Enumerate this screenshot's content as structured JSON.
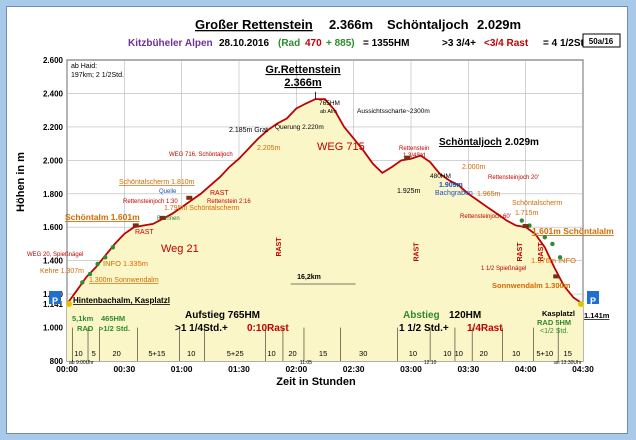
{
  "header": {
    "title_a": "Großer Rettenstein",
    "title_b": "2.366m",
    "title_c": "Schöntaljoch",
    "title_d": "2.029m",
    "region": "Kitzbüheler Alpen",
    "date": "28.10.2016",
    "rad_label": "(Rad",
    "rad_value": "470",
    "rad_plus": "+ 885)",
    "hm_total": "= 1355HM",
    "time_a": ">3 3/4+",
    "time_rast": "<3/4 Rast",
    "time_total": "= 4 1/2Std.",
    "sheet": "50a/16"
  },
  "notes": {
    "start_line1": "ab Haid:",
    "start_line2": "197km; 2 1/2Std."
  },
  "chart_data": {
    "type": "area",
    "xlabel": "Zeit in Stunden",
    "ylabel": "Höhen in m",
    "xlim": [
      0,
      270
    ],
    "ylim": [
      800,
      2600
    ],
    "y_ticks": [
      "2.600",
      "2.400",
      "2.200",
      "2.000",
      "1.800",
      "1.600",
      "1.400",
      "1.200",
      "1.141",
      "1.000",
      "800"
    ],
    "y_tick_values": [
      2600,
      2400,
      2200,
      2000,
      1800,
      1600,
      1400,
      1200,
      1141,
      1000,
      800
    ],
    "x_ticks": [
      "00:00",
      "00:30",
      "01:00",
      "01:30",
      "02:00",
      "02:30",
      "03:00",
      "03:30",
      "04:00",
      "04:30"
    ],
    "x_tick_values": [
      0,
      30,
      60,
      90,
      120,
      150,
      180,
      210,
      240,
      270
    ],
    "profile": {
      "x": [
        0,
        5,
        10,
        15,
        20,
        25,
        30,
        35,
        40,
        45,
        50,
        55,
        60,
        65,
        70,
        75,
        80,
        85,
        90,
        95,
        100,
        105,
        110,
        115,
        120,
        125,
        130,
        135,
        140,
        145,
        150,
        155,
        160,
        165,
        170,
        175,
        180,
        185,
        190,
        195,
        200,
        205,
        210,
        215,
        220,
        225,
        230,
        235,
        240,
        245,
        250,
        255,
        260,
        265,
        270
      ],
      "y": [
        1141,
        1220,
        1300,
        1360,
        1430,
        1500,
        1560,
        1600,
        1610,
        1620,
        1650,
        1680,
        1720,
        1760,
        1800,
        1850,
        1900,
        1960,
        2010,
        2070,
        2130,
        2180,
        2220,
        2250,
        2310,
        2340,
        2366,
        2366,
        2300,
        2200,
        2130,
        2060,
        1980,
        1925,
        1960,
        2000,
        2010,
        2029,
        1990,
        1920,
        1880,
        1850,
        1800,
        1760,
        1720,
        1680,
        1640,
        1610,
        1601,
        1560,
        1480,
        1360,
        1250,
        1180,
        1141
      ]
    },
    "summit_label": "Gr.Rettenstein",
    "summit_value": "2.366m",
    "saddle_label": "Schöntaljoch",
    "saddle_value": "2.029m",
    "segments": [
      {
        "label": "10",
        "x": 6
      },
      {
        "label": "5",
        "x": 14
      },
      {
        "label": "20",
        "x": 26
      },
      {
        "label": "5+15",
        "x": 47
      },
      {
        "label": "10",
        "x": 65
      },
      {
        "label": "5+25",
        "x": 88
      },
      {
        "label": "10",
        "x": 107
      },
      {
        "label": "20",
        "x": 118
      },
      {
        "label": "15",
        "x": 134
      },
      {
        "label": "30",
        "x": 155
      },
      {
        "label": "10",
        "x": 181
      },
      {
        "label": "10",
        "x": 199
      },
      {
        "label": "10",
        "x": 205
      },
      {
        "label": "20",
        "x": 218
      },
      {
        "label": "10",
        "x": 235
      },
      {
        "label": "5+10",
        "x": 250
      },
      {
        "label": "15",
        "x": 262
      }
    ],
    "annotations": {
      "station_start": "Hintenbachalm, Kasplatzl",
      "station_end": "Kasplatzl",
      "station_end_value": "1.141m",
      "schoental_left": "Schöntalm 1.601m",
      "schoental_right": "1.601m Schöntalalm",
      "sonnwend_left": "1.300m Sonnwendalm",
      "sonnwend_right": "Sonnwendalm 1.300m",
      "info_left": "INFO 1.335m",
      "info_right": "1.376m INFO",
      "kehre": "Kehre 1.307m",
      "weg20": "WEG 20, Spießnägel",
      "rast_left": "RAST",
      "weg21": "Weg 21",
      "weg715": "WEG 715",
      "weg716": "WEG 716, Schöntaljoch",
      "schoentalschirm": "Schöntalscherm 1.810m",
      "quelle": "Quelle",
      "rettenstein_joch_l": "Rettensteinjoch 1:30",
      "brunnen": "Brunnen",
      "schoentalscherm2": "1.795m Schöntalscherm",
      "rast_mid": "RAST",
      "rettenstein_216": "Rettenstein 2:16",
      "grat": "2.185m Grat",
      "grat2": "2.205m",
      "querung": "Querung 2.220m",
      "alm765": "765HM",
      "alm765b": "ab Alm",
      "aussicht": "Aussichtsscharte~2300m",
      "km": "16,2km",
      "rast_v1": "RAST",
      "rast_v2": "RAST",
      "rast_v3": "RAST",
      "rast_v4": "RAST",
      "rettenstein_r": "Rettenstein",
      "rettenstein_r2": "1 3/4Std",
      "hm480": "480HM",
      "hoehe1925": "1.925m",
      "bachgraben": "1.909m",
      "bachgraben2": "Bachgraben",
      "hoehe2000": "2.000m",
      "rettenstein_j20": "Rettensteinjoch 20'",
      "hoehe1965": "1.965m",
      "rettenstein_j60": "Rettensteinjoch 60'",
      "schoenscherm_r": "Schöntalscherm",
      "hoehe1715": "1.715m",
      "spiess_r": "1 1/2 Spießnägel",
      "rad5hm": "RAD 5HM",
      "rad5hm2": "<1/2 Std.",
      "time_start": "ab 9:00Uhr",
      "time_1105": "11:05",
      "time_1210": "12:10",
      "time_end": "an 13:30Uhr",
      "rad_left": "5,1km",
      "rad_left_hm": "465HM",
      "rad_left2": "RAD",
      "rad_left3": ">1/2 Std.",
      "aufstieg": "Aufstieg 765HM",
      "aufstieg_time": ">1 1/4Std.+",
      "aufstieg_rast": "0:10Rast",
      "abstieg": "Abstieg",
      "abstieg_hm": "120HM",
      "abstieg_time": "1 1/2 Std.+",
      "abstieg_rast": "1/4Rast",
      "p_left": "P",
      "p_right": "P"
    }
  },
  "colors": {
    "profile_line": "#c00000",
    "fill": "#fbf6c8",
    "grid": "#b8b8b8",
    "header_green": "#2e8b2e",
    "header_purple": "#7030a0",
    "orange": "#d46a00",
    "blue": "#1f4fbf",
    "p_sign": "#1f6fd0"
  }
}
